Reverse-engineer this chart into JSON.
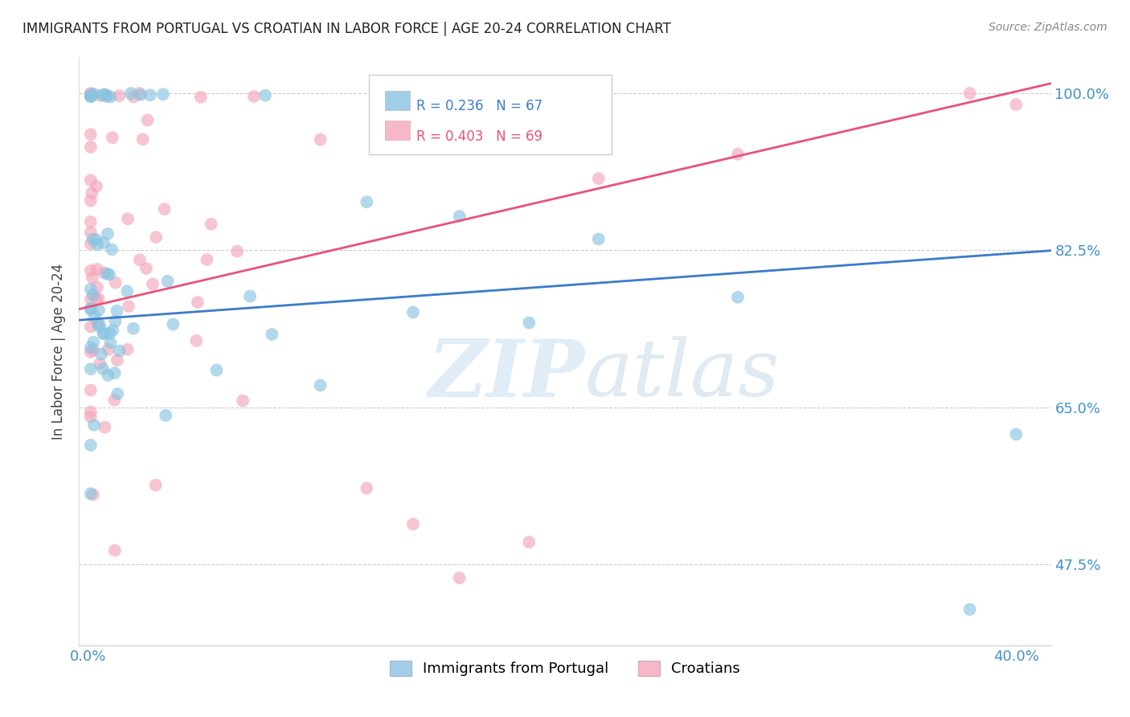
{
  "title": "IMMIGRANTS FROM PORTUGAL VS CROATIAN IN LABOR FORCE | AGE 20-24 CORRELATION CHART",
  "source": "Source: ZipAtlas.com",
  "ylabel": "In Labor Force | Age 20-24",
  "ytick_labels": [
    "100.0%",
    "82.5%",
    "65.0%",
    "47.5%"
  ],
  "ytick_values": [
    1.0,
    0.825,
    0.65,
    0.475
  ],
  "ylim": [
    0.385,
    1.04
  ],
  "xlim": [
    -0.004,
    0.415
  ],
  "color_blue": "#89c4e1",
  "color_pink": "#f4a7bb",
  "color_blue_line": "#3a7dc9",
  "color_pink_line": "#e8527a",
  "color_dashed": "#aac8e8",
  "color_axis_labels": "#4292c6",
  "color_title": "#222222",
  "color_grid": "#cccccc",
  "blue_intercept": 0.748,
  "blue_slope": 0.185,
  "pink_intercept": 0.762,
  "pink_slope": 0.6,
  "seed": 99
}
